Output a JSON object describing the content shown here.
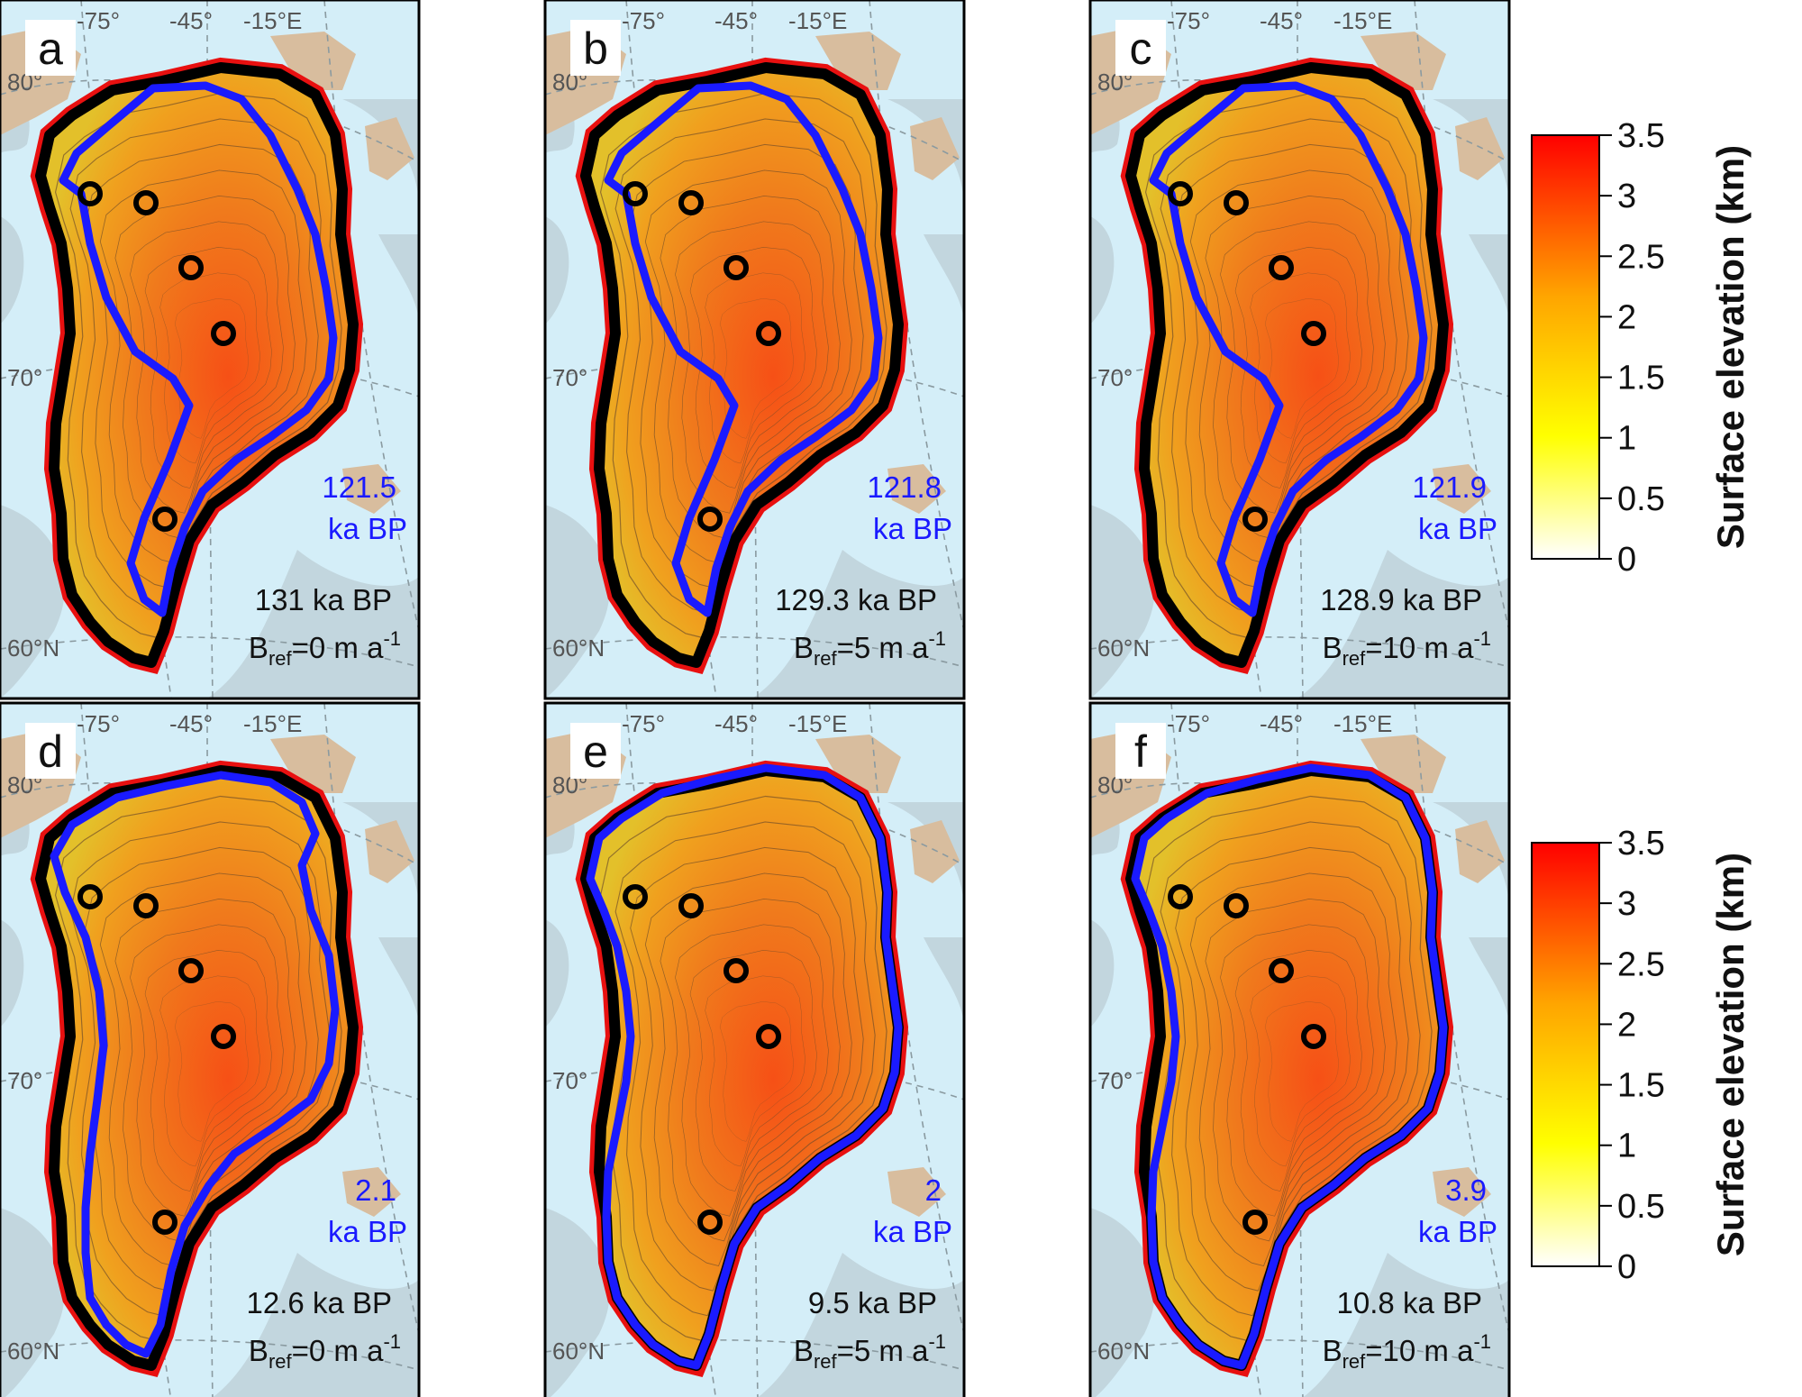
{
  "panels": [
    {
      "letter": "a",
      "blue_value": "121.5",
      "blue_unit": "ka BP",
      "black_age": "131 ka BP",
      "bref_main": "B",
      "bref_sub": "ref",
      "bref_value": "=0 m a",
      "bref_sup": "-1"
    },
    {
      "letter": "b",
      "blue_value": "121.8",
      "blue_unit": "ka BP",
      "black_age": "129.3 ka BP",
      "bref_main": "B",
      "bref_sub": "ref",
      "bref_value": "=5 m a",
      "bref_sup": "-1"
    },
    {
      "letter": "c",
      "blue_value": "121.9",
      "blue_unit": "ka BP",
      "black_age": "128.9 ka BP",
      "bref_main": "B",
      "bref_sub": "ref",
      "bref_value": "=10 m a",
      "bref_sup": "-1"
    },
    {
      "letter": "d",
      "blue_value": "2.1",
      "blue_unit": "ka BP",
      "black_age": "12.6 ka BP",
      "bref_main": "B",
      "bref_sub": "ref",
      "bref_value": "=0 m a",
      "bref_sup": "-1"
    },
    {
      "letter": "e",
      "blue_value": "2",
      "blue_unit": "ka BP",
      "black_age": "9.5 ka BP",
      "bref_main": "B",
      "bref_sub": "ref",
      "bref_value": "=5 m a",
      "bref_sup": "-1"
    },
    {
      "letter": "f",
      "blue_value": "3.9",
      "blue_unit": "ka BP",
      "black_age": "10.8 ka BP",
      "bref_main": "B",
      "bref_sub": "ref",
      "bref_value": "=10 m a",
      "bref_sup": "-1"
    }
  ],
  "graticule": {
    "lon_labels": [
      "-75°",
      "-45°",
      "-15°E"
    ],
    "lat_labels": [
      "80°",
      "70°",
      "60°N"
    ]
  },
  "colorbar": {
    "title": "Surface elevation (km)",
    "ticks": [
      "3.5",
      "3",
      "2.5",
      "2",
      "1.5",
      "1",
      "0.5",
      "0"
    ],
    "colors": [
      "#ffffff",
      "#ffff00",
      "#ffa500",
      "#ff0000"
    ]
  },
  "colors": {
    "ocean": "#d4eef8",
    "sea_ice": "#c2d6de",
    "land": "#d8bd9e",
    "ice_low": "#e6c229",
    "ice_mid": "#f09020",
    "ice_high": "#f65016",
    "outline_black": "#000000",
    "outline_blue": "#1a1aff",
    "red_margin": "#e81010"
  }
}
